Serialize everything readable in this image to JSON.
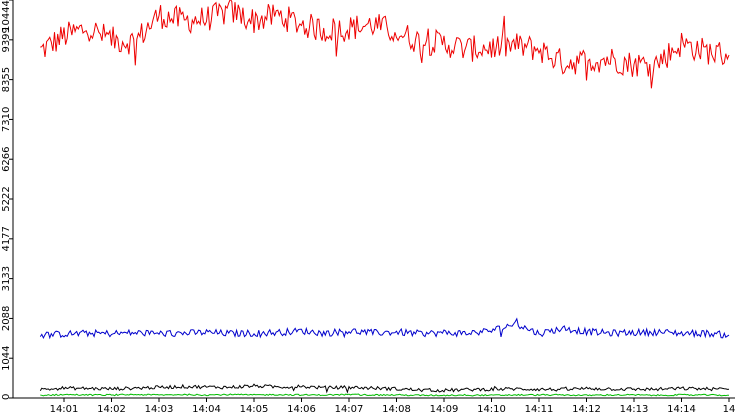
{
  "chart_data": {
    "type": "line",
    "title": "",
    "xlabel": "",
    "ylabel": "",
    "ylim": [
      0,
      10444
    ],
    "y_ticks": [
      0,
      1044,
      2088,
      3133,
      4177,
      5222,
      6266,
      7310,
      8355,
      9399,
      10444
    ],
    "y_tick_labels": [
      "0",
      "1044",
      "2088",
      "3133",
      "4177",
      "5222",
      "6266",
      "7310",
      "8355",
      "9399",
      "10444"
    ],
    "x_ticks": [
      "14:01",
      "14:02",
      "14:03",
      "14:04",
      "14:05",
      "14:06",
      "14:07",
      "14:08",
      "14:09",
      "14:10",
      "14:11",
      "14:12",
      "14:13",
      "14:14",
      "14"
    ],
    "x": [
      "14:00:30",
      "14:01",
      "14:01:30",
      "14:02",
      "14:02:30",
      "14:03",
      "14:03:30",
      "14:04",
      "14:04:30",
      "14:05",
      "14:05:30",
      "14:06",
      "14:06:30",
      "14:07",
      "14:07:30",
      "14:08",
      "14:08:30",
      "14:09",
      "14:09:30",
      "14:10",
      "14:10:30",
      "14:11",
      "14:11:30",
      "14:12",
      "14:12:30",
      "14:13",
      "14:13:30",
      "14:14",
      "14:14:30",
      "14:15"
    ],
    "grid": false,
    "legend": "none",
    "series": [
      {
        "color": "#ee0000",
        "values": [
          9100,
          9500,
          9700,
          9400,
          9350,
          10050,
          9900,
          9950,
          10150,
          9900,
          10050,
          9800,
          9650,
          9700,
          9800,
          9600,
          9350,
          9300,
          9150,
          9200,
          9250,
          9150,
          8800,
          8850,
          8900,
          8750,
          8800,
          9300,
          9100,
          9000
        ]
      },
      {
        "color": "#0000cc",
        "values": [
          1650,
          1680,
          1700,
          1690,
          1710,
          1690,
          1700,
          1720,
          1690,
          1700,
          1720,
          1760,
          1700,
          1760,
          1710,
          1730,
          1690,
          1710,
          1700,
          1770,
          1950,
          1690,
          1830,
          1740,
          1700,
          1720,
          1730,
          1700,
          1700,
          1650
        ]
      },
      {
        "color": "#000000",
        "values": [
          220,
          260,
          250,
          240,
          260,
          280,
          300,
          290,
          280,
          320,
          290,
          300,
          270,
          280,
          260,
          240,
          210,
          200,
          220,
          230,
          240,
          230,
          220,
          250,
          240,
          230,
          230,
          250,
          240,
          230
        ]
      },
      {
        "color": "#00bb00",
        "values": [
          70,
          90,
          80,
          80,
          90,
          80,
          90,
          80,
          90,
          80,
          90,
          80,
          80,
          90,
          80,
          80,
          70,
          70,
          80,
          70,
          80,
          80,
          80,
          70,
          80,
          80,
          70,
          80,
          80,
          70
        ]
      }
    ]
  }
}
